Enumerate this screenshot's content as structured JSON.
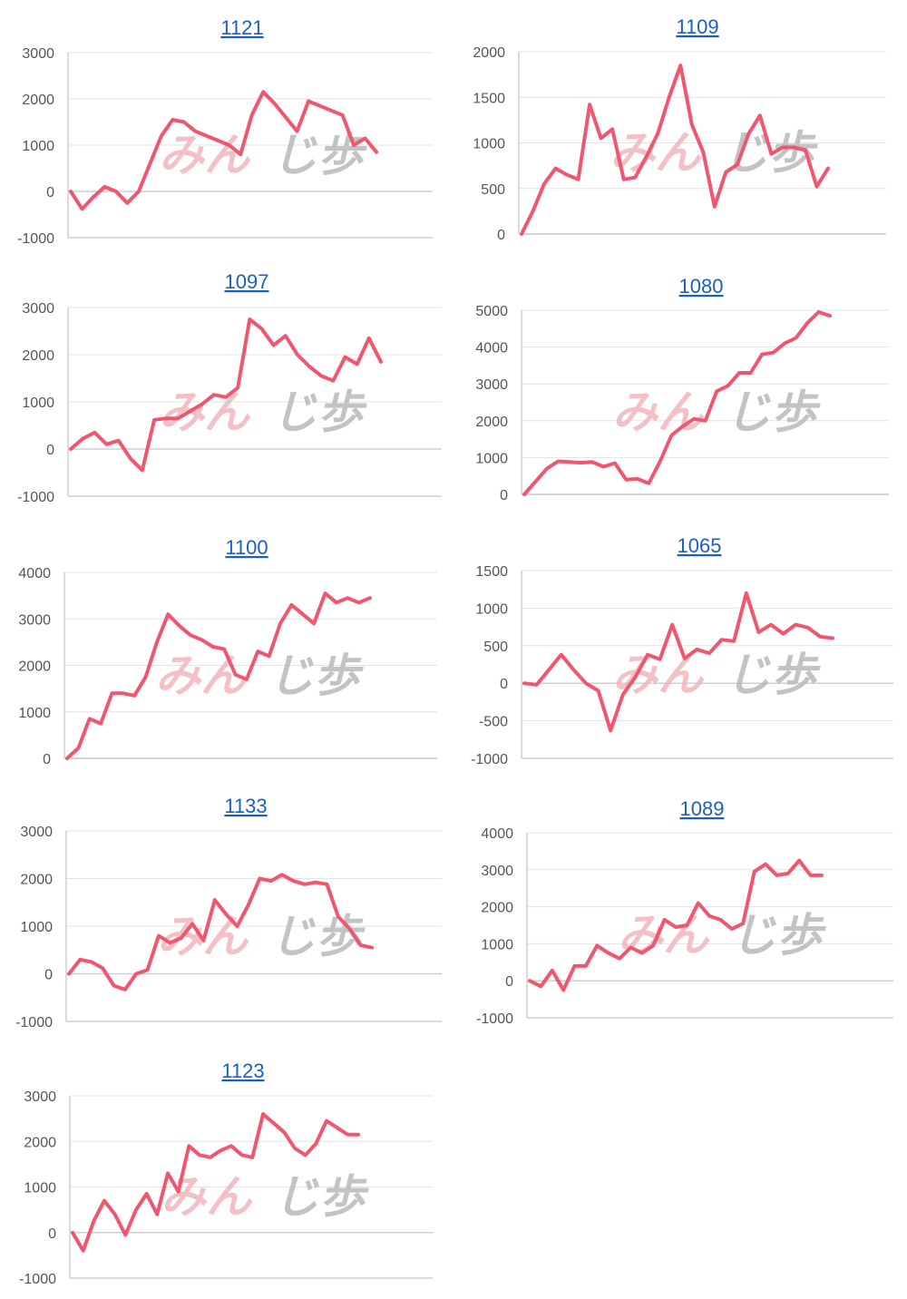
{
  "colors": {
    "line": "#f0566e",
    "title": "#1a5fc4"
  },
  "watermark": {
    "part_a": "みん",
    "part_b": "じ歩"
  },
  "chart_data": [
    {
      "type": "line",
      "title": "1121",
      "yticks": [
        -1000,
        0,
        1000,
        2000,
        3000
      ],
      "ylim": [
        -1000,
        3000
      ],
      "values": [
        0,
        -380,
        -120,
        100,
        0,
        -250,
        0,
        600,
        1200,
        1550,
        1500,
        1300,
        1200,
        1100,
        1000,
        800,
        1650,
        2150,
        1900,
        1600,
        1300,
        1950,
        1850,
        1750,
        1650,
        1000,
        1150,
        850
      ]
    },
    {
      "type": "line",
      "title": "1109",
      "yticks": [
        0,
        500,
        1000,
        1500,
        2000
      ],
      "ylim": [
        0,
        2000
      ],
      "values": [
        0,
        250,
        550,
        720,
        650,
        600,
        1420,
        1050,
        1150,
        600,
        620,
        850,
        1100,
        1500,
        1850,
        1200,
        900,
        300,
        680,
        760,
        1100,
        1300,
        880,
        950,
        950,
        920,
        520,
        720
      ]
    },
    {
      "type": "line",
      "title": "1097",
      "yticks": [
        -1000,
        0,
        1000,
        2000,
        3000
      ],
      "ylim": [
        -1000,
        3000
      ],
      "values": [
        0,
        220,
        350,
        100,
        180,
        -200,
        -450,
        620,
        650,
        650,
        800,
        950,
        1150,
        1100,
        1300,
        2750,
        2550,
        2200,
        2400,
        2000,
        1750,
        1550,
        1450,
        1950,
        1800,
        2350,
        1850
      ]
    },
    {
      "type": "line",
      "title": "1080",
      "yticks": [
        0,
        1000,
        2000,
        3000,
        4000,
        5000
      ],
      "ylim": [
        0,
        5000
      ],
      "values": [
        0,
        350,
        700,
        900,
        880,
        860,
        880,
        750,
        850,
        400,
        420,
        300,
        900,
        1600,
        1850,
        2050,
        2000,
        2800,
        2950,
        3300,
        3300,
        3800,
        3850,
        4100,
        4250,
        4650,
        4950,
        4850
      ]
    },
    {
      "type": "line",
      "title": "1100",
      "yticks": [
        0,
        1000,
        2000,
        3000,
        4000
      ],
      "ylim": [
        0,
        4000
      ],
      "values": [
        0,
        220,
        850,
        750,
        1400,
        1400,
        1350,
        1750,
        2500,
        3100,
        2850,
        2650,
        2550,
        2400,
        2350,
        1800,
        1700,
        2300,
        2200,
        2900,
        3300,
        3100,
        2900,
        3550,
        3350,
        3450,
        3350,
        3450
      ]
    },
    {
      "type": "line",
      "title": "1065",
      "yticks": [
        -1000,
        -500,
        0,
        500,
        1000,
        1500
      ],
      "ylim": [
        -1000,
        1500
      ],
      "values": [
        0,
        -20,
        180,
        380,
        180,
        0,
        -100,
        -630,
        -150,
        80,
        380,
        320,
        780,
        330,
        450,
        400,
        580,
        560,
        1200,
        680,
        780,
        660,
        780,
        740,
        620,
        600
      ]
    },
    {
      "type": "line",
      "title": "1133",
      "yticks": [
        -1000,
        0,
        1000,
        2000,
        3000
      ],
      "ylim": [
        -1000,
        3000
      ],
      "values": [
        0,
        300,
        250,
        120,
        -250,
        -330,
        0,
        80,
        800,
        650,
        750,
        1050,
        700,
        1550,
        1250,
        1000,
        1450,
        2000,
        1950,
        2080,
        1950,
        1880,
        1920,
        1880,
        1200,
        950,
        600,
        550
      ]
    },
    {
      "type": "line",
      "title": "1089",
      "yticks": [
        -1000,
        0,
        1000,
        2000,
        3000,
        4000
      ],
      "ylim": [
        -1000,
        4000
      ],
      "values": [
        0,
        -150,
        280,
        -250,
        400,
        400,
        950,
        750,
        600,
        900,
        750,
        950,
        1650,
        1450,
        1500,
        2100,
        1750,
        1650,
        1400,
        1550,
        2950,
        3150,
        2850,
        2900,
        3250,
        2850,
        2850
      ]
    },
    {
      "type": "line",
      "title": "1123",
      "yticks": [
        -1000,
        0,
        1000,
        2000,
        3000
      ],
      "ylim": [
        -1000,
        3000
      ],
      "values": [
        0,
        -400,
        250,
        700,
        400,
        -50,
        500,
        850,
        400,
        1300,
        900,
        1900,
        1700,
        1650,
        1800,
        1900,
        1700,
        1650,
        2600,
        2400,
        2200,
        1850,
        1700,
        1950,
        2450,
        2300,
        2150,
        2150
      ]
    }
  ]
}
